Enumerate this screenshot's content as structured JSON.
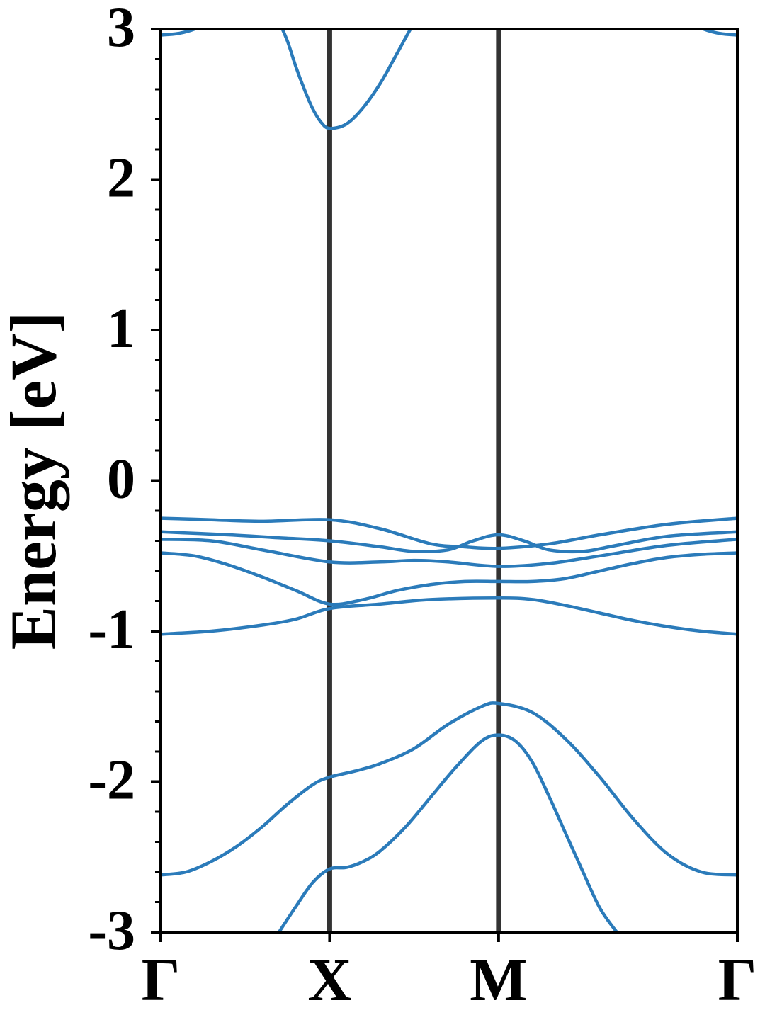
{
  "chart_data": {
    "type": "line",
    "title": "",
    "xlabel": "",
    "ylabel": "Energy [eV]",
    "ylim": [
      -3,
      3
    ],
    "y_ticks": [
      -3,
      -2,
      -1,
      0,
      1,
      2,
      3
    ],
    "y_tick_labels": [
      "-3",
      "-2",
      "-1",
      "0",
      "1",
      "2",
      "3"
    ],
    "y_minor_step": 0.2,
    "k_points": [
      {
        "label": "Γ",
        "k": 0.0
      },
      {
        "label": "X",
        "k": 1.0
      },
      {
        "label": "M",
        "k": 2.0
      },
      {
        "label": "Γ",
        "k": 3.414
      }
    ],
    "line_color": "#2b7bba",
    "separator_color": "#333333",
    "grid": false,
    "series": [
      {
        "x": [
          0,
          0.1,
          0.2,
          0.3,
          0.4,
          0.5
        ],
        "y": [
          2.96,
          2.97,
          3.0,
          3.06,
          3.14,
          3.24
        ]
      },
      {
        "x": [
          3.414,
          3.314,
          3.214,
          3.114,
          3.014,
          2.914
        ],
        "y": [
          2.96,
          2.97,
          3.0,
          3.06,
          3.14,
          3.24
        ]
      },
      {
        "x": [
          0.7,
          0.75,
          0.8,
          0.85,
          0.9,
          0.95,
          1.0,
          1.1,
          1.2,
          1.3,
          1.4,
          1.5,
          1.6
        ],
        "y": [
          3.05,
          2.92,
          2.75,
          2.6,
          2.47,
          2.38,
          2.34,
          2.37,
          2.48,
          2.64,
          2.84,
          3.04,
          3.2
        ]
      },
      {
        "x": [
          0,
          0.3,
          0.6,
          1.0,
          1.3,
          1.6,
          1.8,
          2.0,
          2.3,
          2.6,
          3.0,
          3.414
        ],
        "y": [
          -0.25,
          -0.26,
          -0.27,
          -0.26,
          -0.32,
          -0.42,
          -0.44,
          -0.45,
          -0.42,
          -0.36,
          -0.29,
          -0.25
        ]
      },
      {
        "x": [
          0,
          0.4,
          0.7,
          1.0,
          1.3,
          1.5,
          1.7,
          1.85,
          2.0,
          2.15,
          2.3,
          2.5,
          2.7,
          3.0,
          3.414
        ],
        "y": [
          -0.34,
          -0.36,
          -0.38,
          -0.4,
          -0.44,
          -0.47,
          -0.46,
          -0.4,
          -0.36,
          -0.4,
          -0.46,
          -0.47,
          -0.43,
          -0.37,
          -0.34
        ]
      },
      {
        "x": [
          0,
          0.3,
          0.6,
          1.0,
          1.3,
          1.5,
          1.7,
          2.0,
          2.3,
          2.6,
          3.0,
          3.414
        ],
        "y": [
          -0.39,
          -0.4,
          -0.46,
          -0.54,
          -0.54,
          -0.53,
          -0.54,
          -0.57,
          -0.55,
          -0.5,
          -0.43,
          -0.39
        ]
      },
      {
        "x": [
          0,
          0.2,
          0.4,
          0.6,
          0.8,
          1.0,
          1.2,
          1.4,
          1.6,
          1.8,
          2.0,
          2.2,
          2.4,
          2.6,
          2.8,
          3.0,
          3.2,
          3.414
        ],
        "y": [
          -0.48,
          -0.5,
          -0.56,
          -0.64,
          -0.73,
          -0.82,
          -0.79,
          -0.73,
          -0.69,
          -0.67,
          -0.67,
          -0.67,
          -0.65,
          -0.6,
          -0.55,
          -0.51,
          -0.49,
          -0.48
        ]
      },
      {
        "x": [
          0,
          0.3,
          0.6,
          0.8,
          1.0,
          1.3,
          1.6,
          2.0,
          2.2,
          2.4,
          2.6,
          2.8,
          3.0,
          3.2,
          3.414
        ],
        "y": [
          -1.02,
          -1.0,
          -0.96,
          -0.92,
          -0.85,
          -0.82,
          -0.79,
          -0.78,
          -0.79,
          -0.83,
          -0.88,
          -0.93,
          -0.97,
          -1.0,
          -1.02
        ]
      },
      {
        "x": [
          0,
          0.15,
          0.3,
          0.45,
          0.6,
          0.75,
          0.9,
          1.0,
          1.15,
          1.3,
          1.5,
          1.7,
          1.9,
          2.0,
          2.2,
          2.4,
          2.6,
          2.8,
          3.0,
          3.2,
          3.414
        ],
        "y": [
          -2.62,
          -2.6,
          -2.53,
          -2.43,
          -2.3,
          -2.15,
          -2.02,
          -1.97,
          -1.93,
          -1.88,
          -1.78,
          -1.62,
          -1.5,
          -1.48,
          -1.54,
          -1.72,
          -1.97,
          -2.25,
          -2.48,
          -2.6,
          -2.62
        ]
      },
      {
        "x": [
          0.7,
          0.8,
          0.9,
          1.0,
          1.1,
          1.2,
          1.3,
          1.45,
          1.6,
          1.75,
          1.9,
          2.0,
          2.1,
          2.2,
          2.3,
          2.4,
          2.5,
          2.6,
          2.7,
          2.73
        ],
        "y": [
          -3.0,
          -2.83,
          -2.67,
          -2.58,
          -2.57,
          -2.53,
          -2.46,
          -2.3,
          -2.1,
          -1.9,
          -1.73,
          -1.69,
          -1.73,
          -1.87,
          -2.1,
          -2.35,
          -2.6,
          -2.84,
          -3.0,
          -3.04
        ]
      }
    ]
  }
}
